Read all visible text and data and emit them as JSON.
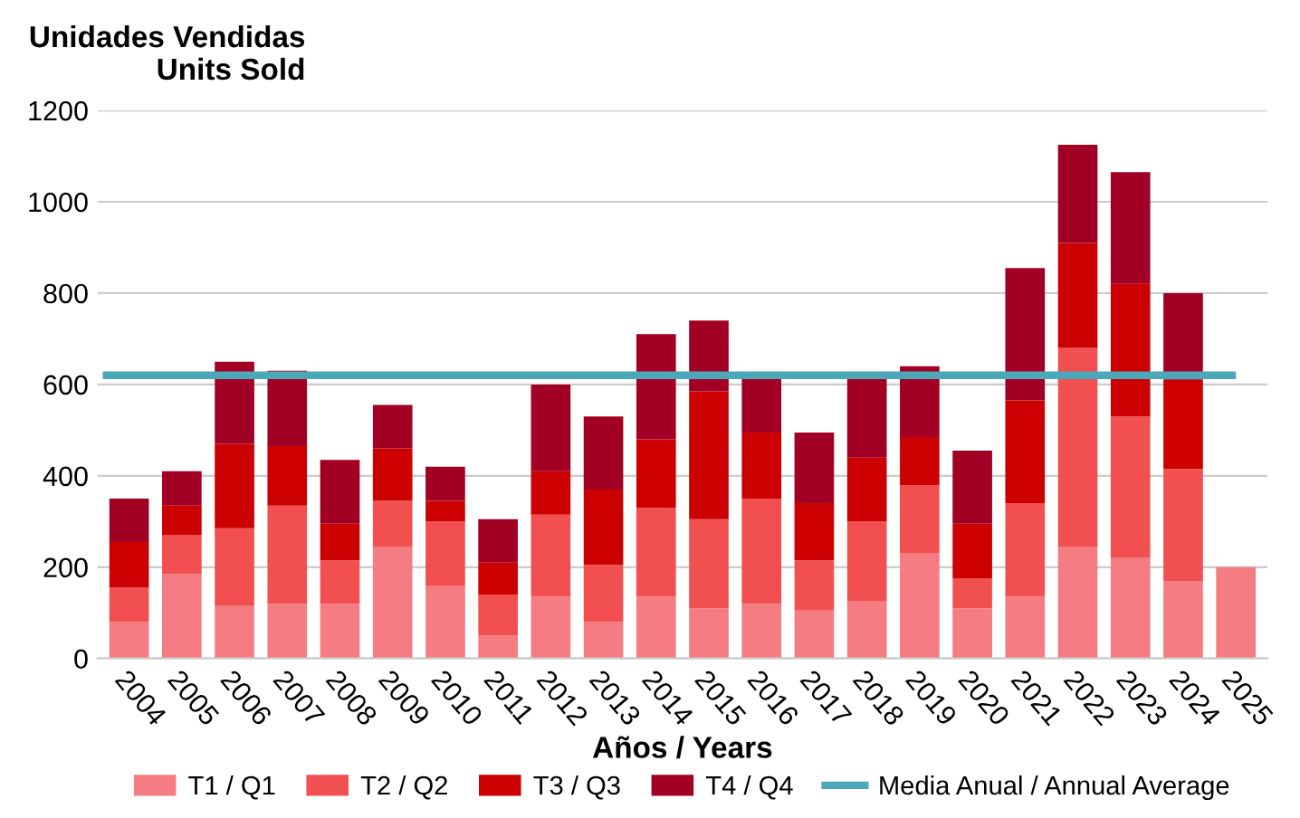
{
  "chart_data": {
    "type": "bar",
    "stacked": true,
    "ylabel": "Unidades Vendidas\nUnits Sold",
    "xlabel": "Años / Years",
    "categories": [
      "2004",
      "2005",
      "2006",
      "2007",
      "2008",
      "2009",
      "2010",
      "2011",
      "2012",
      "2013",
      "2014",
      "2015",
      "2016",
      "2017",
      "2018",
      "2019",
      "2020",
      "2021",
      "2022",
      "2023",
      "2024",
      "2025"
    ],
    "series": [
      {
        "name": "T1 / Q1",
        "color": "#f47c82",
        "values": [
          80,
          185,
          115,
          120,
          120,
          245,
          160,
          50,
          135,
          80,
          135,
          110,
          120,
          105,
          125,
          230,
          110,
          135,
          245,
          220,
          170,
          200
        ]
      },
      {
        "name": "T2 / Q2",
        "color": "#f25050",
        "values": [
          75,
          85,
          170,
          215,
          95,
          100,
          140,
          90,
          180,
          125,
          195,
          195,
          230,
          110,
          175,
          150,
          65,
          205,
          435,
          310,
          245,
          null
        ]
      },
      {
        "name": "T3 / Q3",
        "color": "#cc0000",
        "values": [
          100,
          65,
          185,
          130,
          80,
          115,
          45,
          70,
          95,
          165,
          150,
          280,
          145,
          125,
          140,
          105,
          120,
          225,
          230,
          290,
          195,
          null
        ]
      },
      {
        "name": "T4 / Q4",
        "color": "#a10024",
        "values": [
          95,
          75,
          180,
          165,
          140,
          95,
          75,
          95,
          190,
          160,
          230,
          155,
          120,
          155,
          175,
          155,
          160,
          290,
          215,
          245,
          190,
          null
        ]
      }
    ],
    "ref_lines": [
      {
        "axis": "y",
        "value": 620,
        "label": "Media Anual / Annual Average",
        "color": "#4aa8b8"
      }
    ],
    "ylim": [
      0,
      1200
    ],
    "yticks": [
      0,
      200,
      400,
      600,
      800,
      1000,
      1200
    ],
    "grid": "y",
    "legend": "bottom"
  }
}
